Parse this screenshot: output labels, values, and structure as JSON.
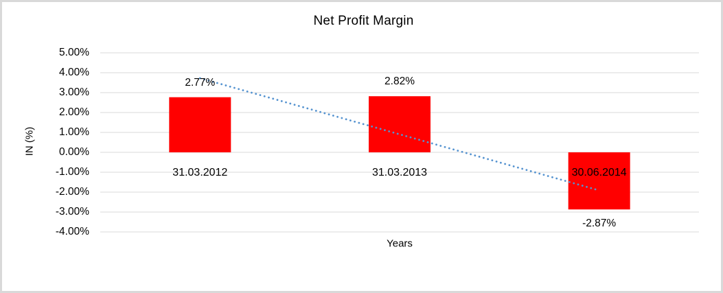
{
  "frame": {
    "background": "#ffffff",
    "border_color": "#d9d9d9"
  },
  "chart_data": {
    "type": "bar",
    "title": "Net Profit Margin",
    "xlabel": "Years",
    "ylabel": "IN (%)",
    "categories": [
      "31.03.2012",
      "31.03.2013",
      "30.06.2014"
    ],
    "values": [
      2.77,
      2.82,
      -2.87
    ],
    "data_labels": [
      "2.77%",
      "2.82%",
      "-2.87%"
    ],
    "ylim": [
      -4,
      5
    ],
    "ytick_labels": [
      "5.00%",
      "4.00%",
      "3.00%",
      "2.00%",
      "1.00%",
      "0.00%",
      "-1.00%",
      "-2.00%",
      "-3.00%",
      "-4.00%"
    ],
    "ytick_values": [
      5,
      4,
      3,
      2,
      1,
      0,
      -1,
      -2,
      -3,
      -4
    ],
    "grid": true,
    "legend": "none",
    "bar_color": "#ff0000",
    "gridline_color": "#d9d9d9",
    "text_color": "#000000",
    "trendline": {
      "type": "linear",
      "style": "dotted",
      "color": "#5593d0"
    }
  }
}
